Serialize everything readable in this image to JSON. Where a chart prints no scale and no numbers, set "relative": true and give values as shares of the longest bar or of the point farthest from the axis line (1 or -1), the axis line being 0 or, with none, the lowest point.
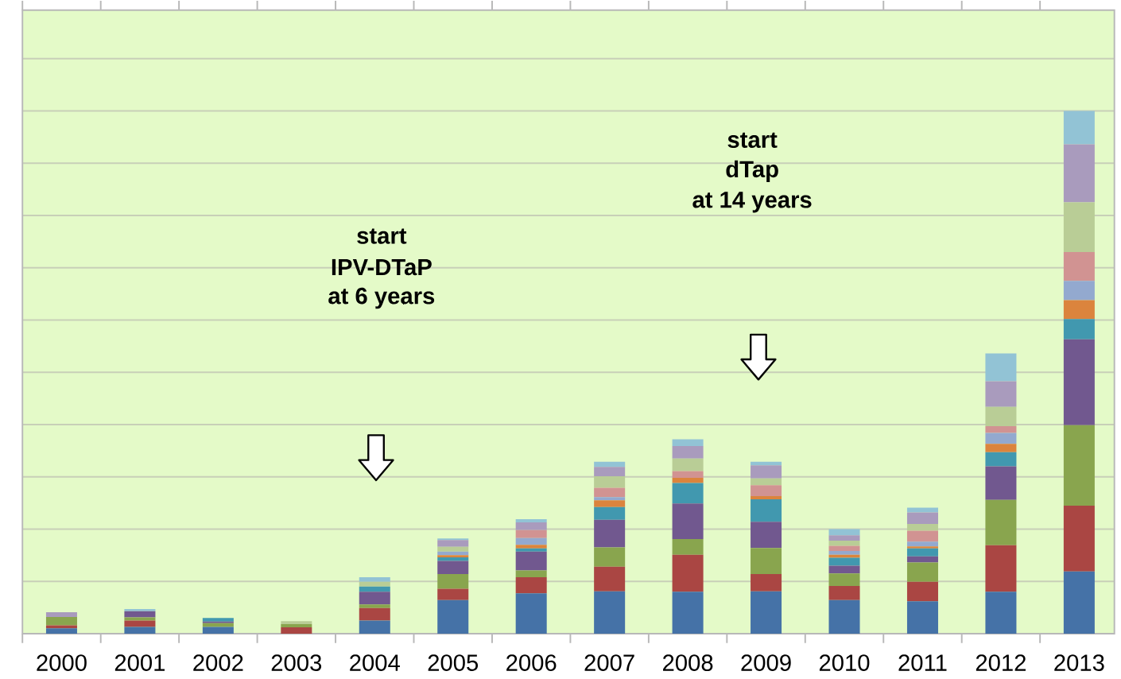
{
  "chart_data": {
    "type": "bar",
    "stacked": true,
    "relative": true,
    "grid": "y",
    "categories": [
      "2000",
      "2001",
      "2002",
      "2003",
      "2004",
      "2005",
      "2006",
      "2007",
      "2008",
      "2009",
      "2010",
      "2011",
      "2012",
      "2013"
    ],
    "series": [
      {
        "color": "#4572a7",
        "values": [
          0.01,
          0.013,
          0.013,
          0,
          0.025,
          0.064,
          0.077,
          0.081,
          0.08,
          0.081,
          0.064,
          0.062,
          0.08,
          0.119
        ]
      },
      {
        "color": "#aa4643",
        "values": [
          0.006,
          0.012,
          0,
          0.012,
          0.024,
          0.022,
          0.031,
          0.047,
          0.071,
          0.033,
          0.027,
          0.037,
          0.089,
          0.126
        ]
      },
      {
        "color": "#89a54e",
        "values": [
          0.016,
          0.006,
          0.007,
          0.006,
          0.007,
          0.028,
          0.013,
          0.037,
          0.03,
          0.05,
          0.024,
          0.037,
          0.087,
          0.154
        ]
      },
      {
        "color": "#71588f",
        "values": [
          0,
          0.012,
          0.003,
          0,
          0.024,
          0.025,
          0.036,
          0.053,
          0.068,
          0.05,
          0.015,
          0.012,
          0.064,
          0.164
        ]
      },
      {
        "color": "#4198af",
        "values": [
          0,
          0,
          0.007,
          0,
          0.01,
          0.007,
          0.006,
          0.024,
          0.039,
          0.043,
          0.015,
          0.015,
          0.027,
          0.039
        ]
      },
      {
        "color": "#db843d",
        "values": [
          0,
          0,
          0,
          0,
          0,
          0.004,
          0.007,
          0.013,
          0.01,
          0.006,
          0.006,
          0.004,
          0.016,
          0.036
        ]
      },
      {
        "color": "#93a9cf",
        "values": [
          0,
          0,
          0,
          0,
          0,
          0.007,
          0.013,
          0.006,
          0,
          0,
          0.007,
          0.009,
          0.021,
          0.037
        ]
      },
      {
        "color": "#d19392",
        "values": [
          0,
          0,
          0,
          0,
          0,
          0,
          0.015,
          0.018,
          0.013,
          0.021,
          0.01,
          0.021,
          0.013,
          0.055
        ]
      },
      {
        "color": "#b9cd96",
        "values": [
          0,
          0,
          0,
          0.006,
          0.009,
          0.009,
          0,
          0.022,
          0.024,
          0.013,
          0.01,
          0.013,
          0.037,
          0.095
        ]
      },
      {
        "color": "#a99bbd",
        "values": [
          0.009,
          0,
          0,
          0,
          0,
          0.013,
          0.015,
          0.018,
          0.024,
          0.025,
          0.01,
          0.022,
          0.049,
          0.111
        ]
      },
      {
        "color": "#92c3d5",
        "values": [
          0,
          0.004,
          0,
          0,
          0.009,
          0.003,
          0.006,
          0.01,
          0.013,
          0.007,
          0.012,
          0.009,
          0.053,
          0.064
        ]
      }
    ],
    "annotations": [
      "start",
      "IPV-DTaP",
      "at 6 years",
      "start",
      "dTap",
      "at 14 years"
    ]
  }
}
